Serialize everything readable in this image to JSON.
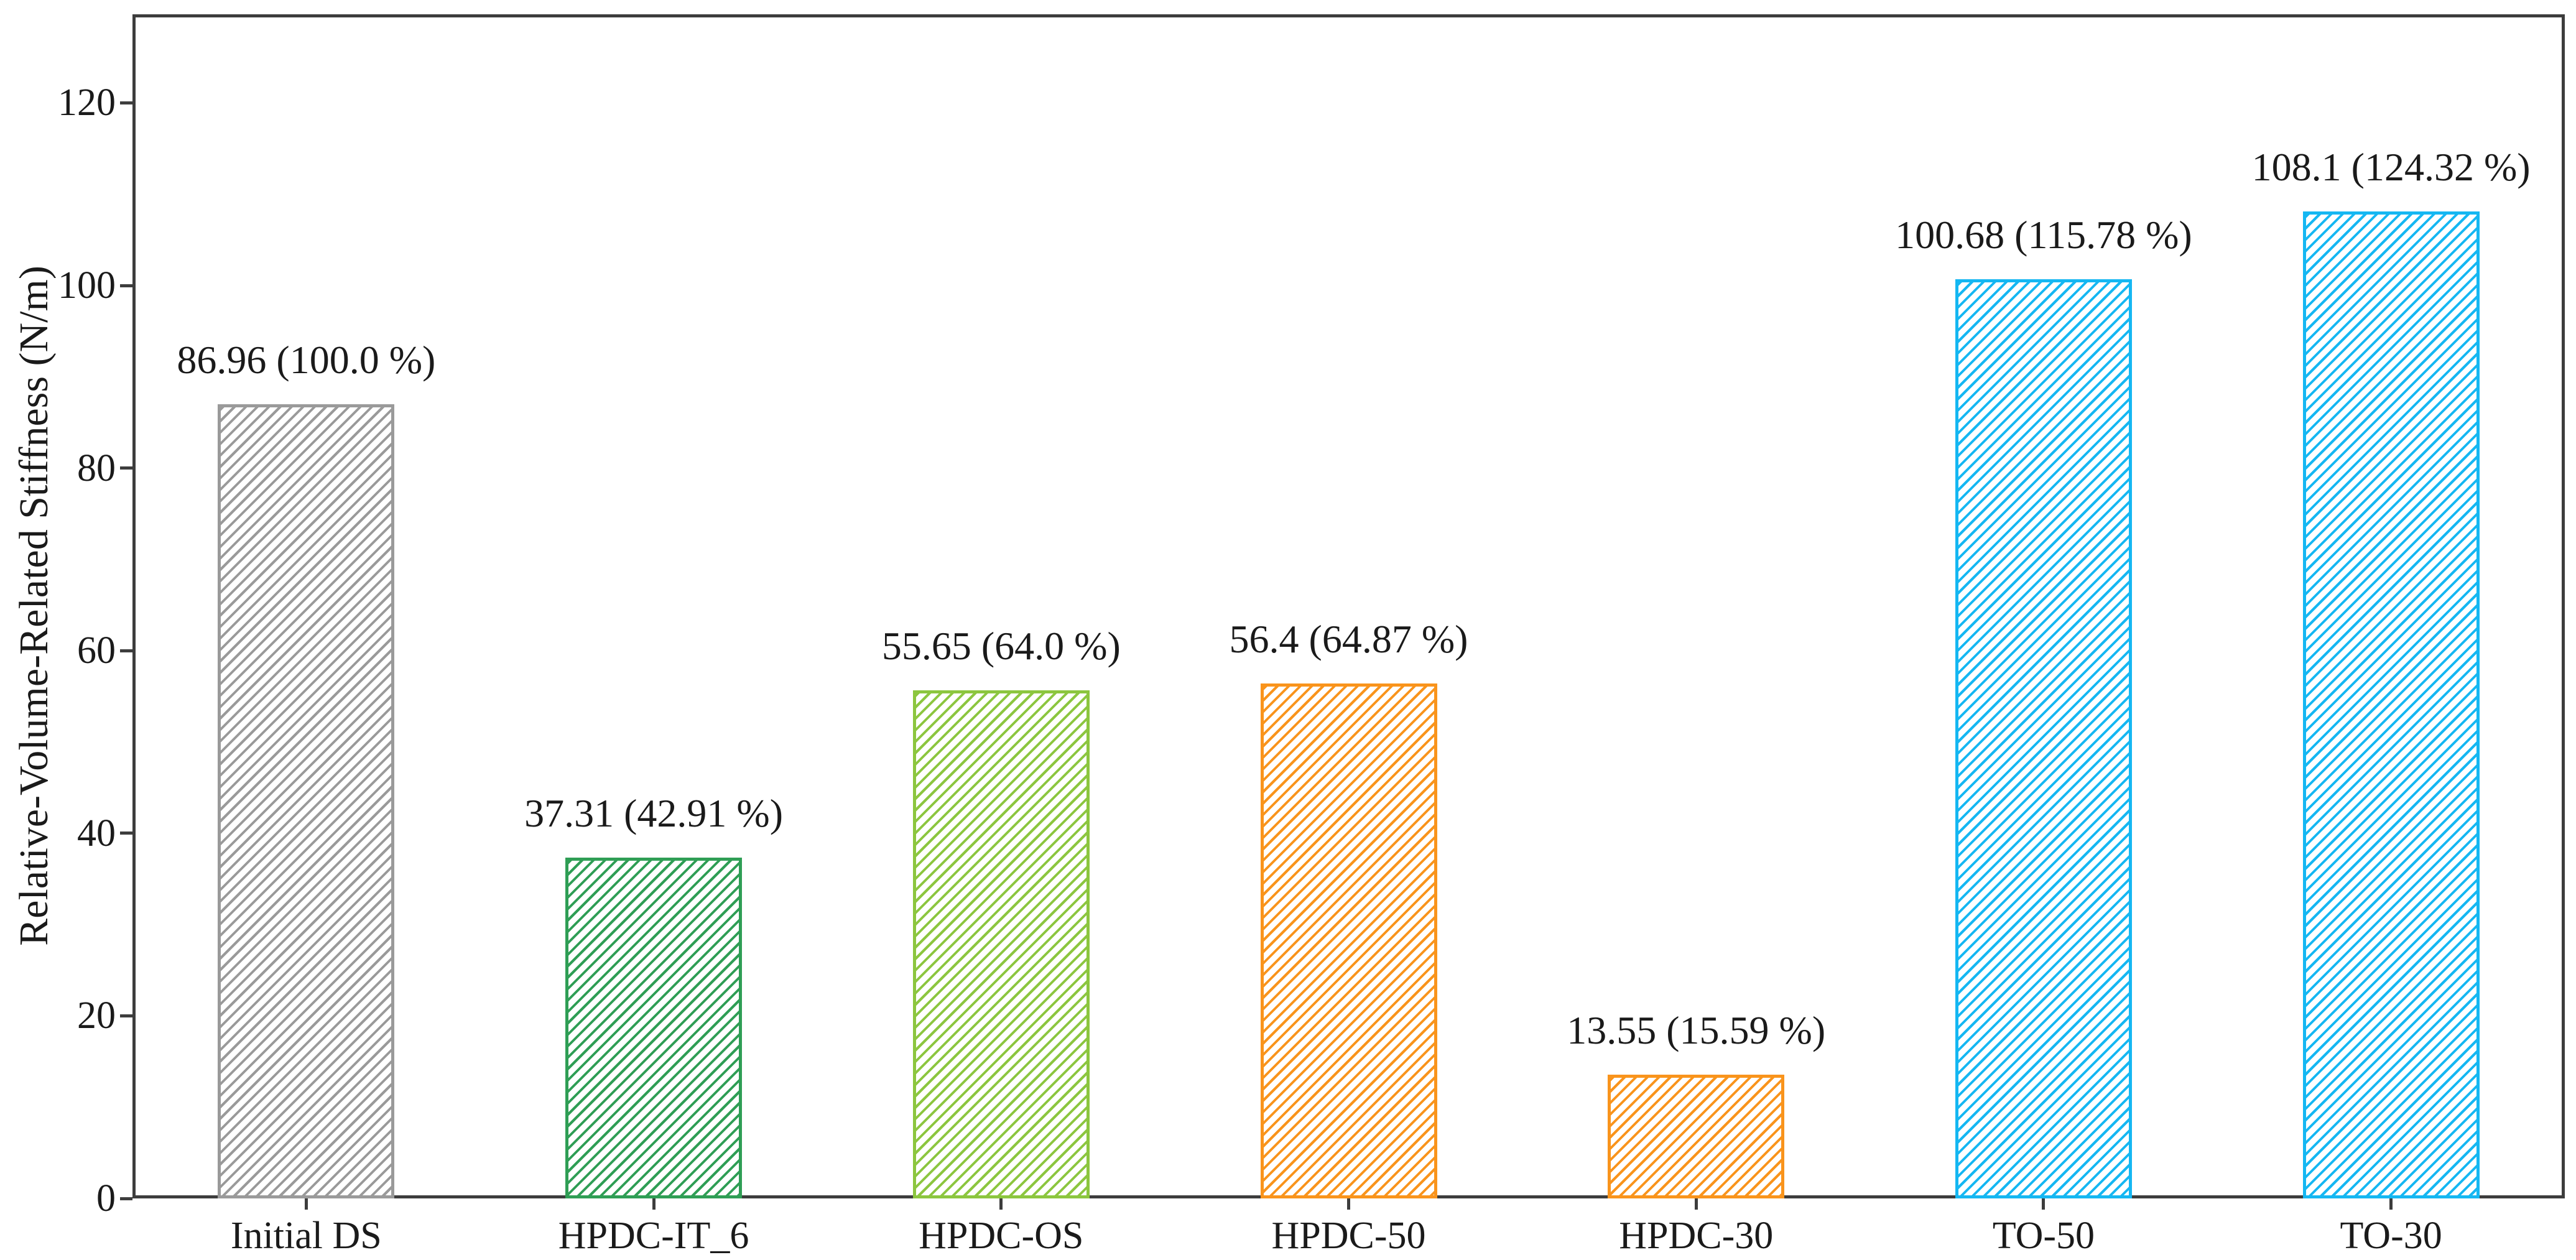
{
  "chart_data": {
    "type": "bar",
    "title": "",
    "xlabel": "",
    "ylabel": "Relative-Volume-Related Stiffness (N/m)",
    "categories": [
      "Initial DS",
      "HPDC-IT_6",
      "HPDC-OS",
      "HPDC-50",
      "HPDC-30",
      "TO-50",
      "TO-30"
    ],
    "values": [
      86.96,
      37.31,
      55.65,
      56.4,
      13.55,
      100.68,
      108.1
    ],
    "percent_of_initial": [
      100.0,
      42.91,
      64.0,
      64.87,
      15.59,
      115.78,
      124.32
    ],
    "bar_labels": [
      "86.96 (100.0 %)",
      "37.31 (42.91 %)",
      "55.65 (64.0 %)",
      "56.4 (64.87 %)",
      "13.55 (15.59 %)",
      "100.68 (115.78 %)",
      "108.1 (124.32 %)"
    ],
    "bar_colors": [
      "#9a9a9a",
      "#2f9e55",
      "#8cc63f",
      "#f9941c",
      "#f9941c",
      "#15b7f2",
      "#15b7f2"
    ],
    "hatch": "/",
    "yticks": [
      0,
      20,
      40,
      60,
      80,
      100,
      120
    ],
    "ylim": [
      0,
      130
    ],
    "grid": false,
    "legend": null,
    "axis_color": "#3d3d3d",
    "text_color": "#1a1a1a",
    "background": "#ffffff"
  }
}
